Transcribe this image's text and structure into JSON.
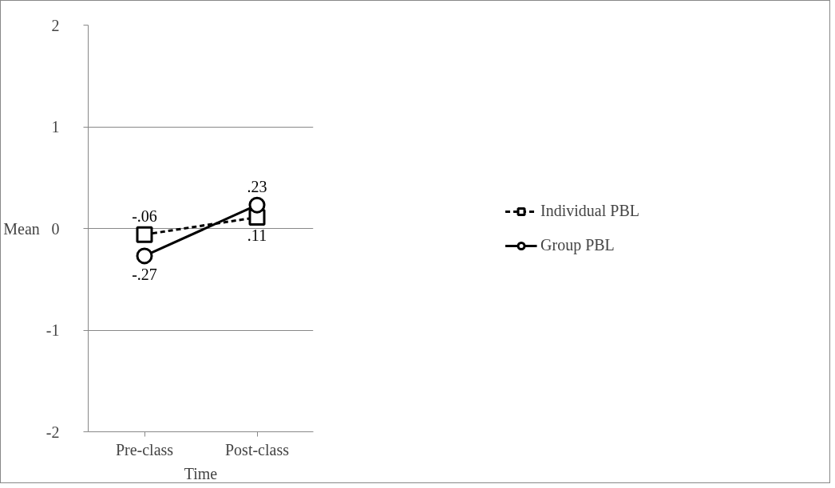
{
  "chart_data": {
    "type": "line",
    "xlabel": "Time",
    "ylabel": "Mean",
    "categories": [
      "Pre-class",
      "Post-class"
    ],
    "series": [
      {
        "name": "Individual PBL",
        "color": "#000000",
        "values": [
          -0.06,
          0.11
        ],
        "value_labels": [
          "-.06",
          ".11"
        ],
        "marker": "square",
        "line_style": "dashed"
      },
      {
        "name": "Group PBL",
        "color": "#000000",
        "values": [
          -0.27,
          0.23
        ],
        "value_labels": [
          "-.27",
          ".23"
        ],
        "marker": "circle",
        "line_style": "solid"
      }
    ],
    "ylim": [
      -2,
      2
    ],
    "yticks": [
      {
        "value": -2,
        "label": "-2"
      },
      {
        "value": -1,
        "label": "-1"
      },
      0,
      1,
      2
    ],
    "grid": "y",
    "legend": "right"
  }
}
